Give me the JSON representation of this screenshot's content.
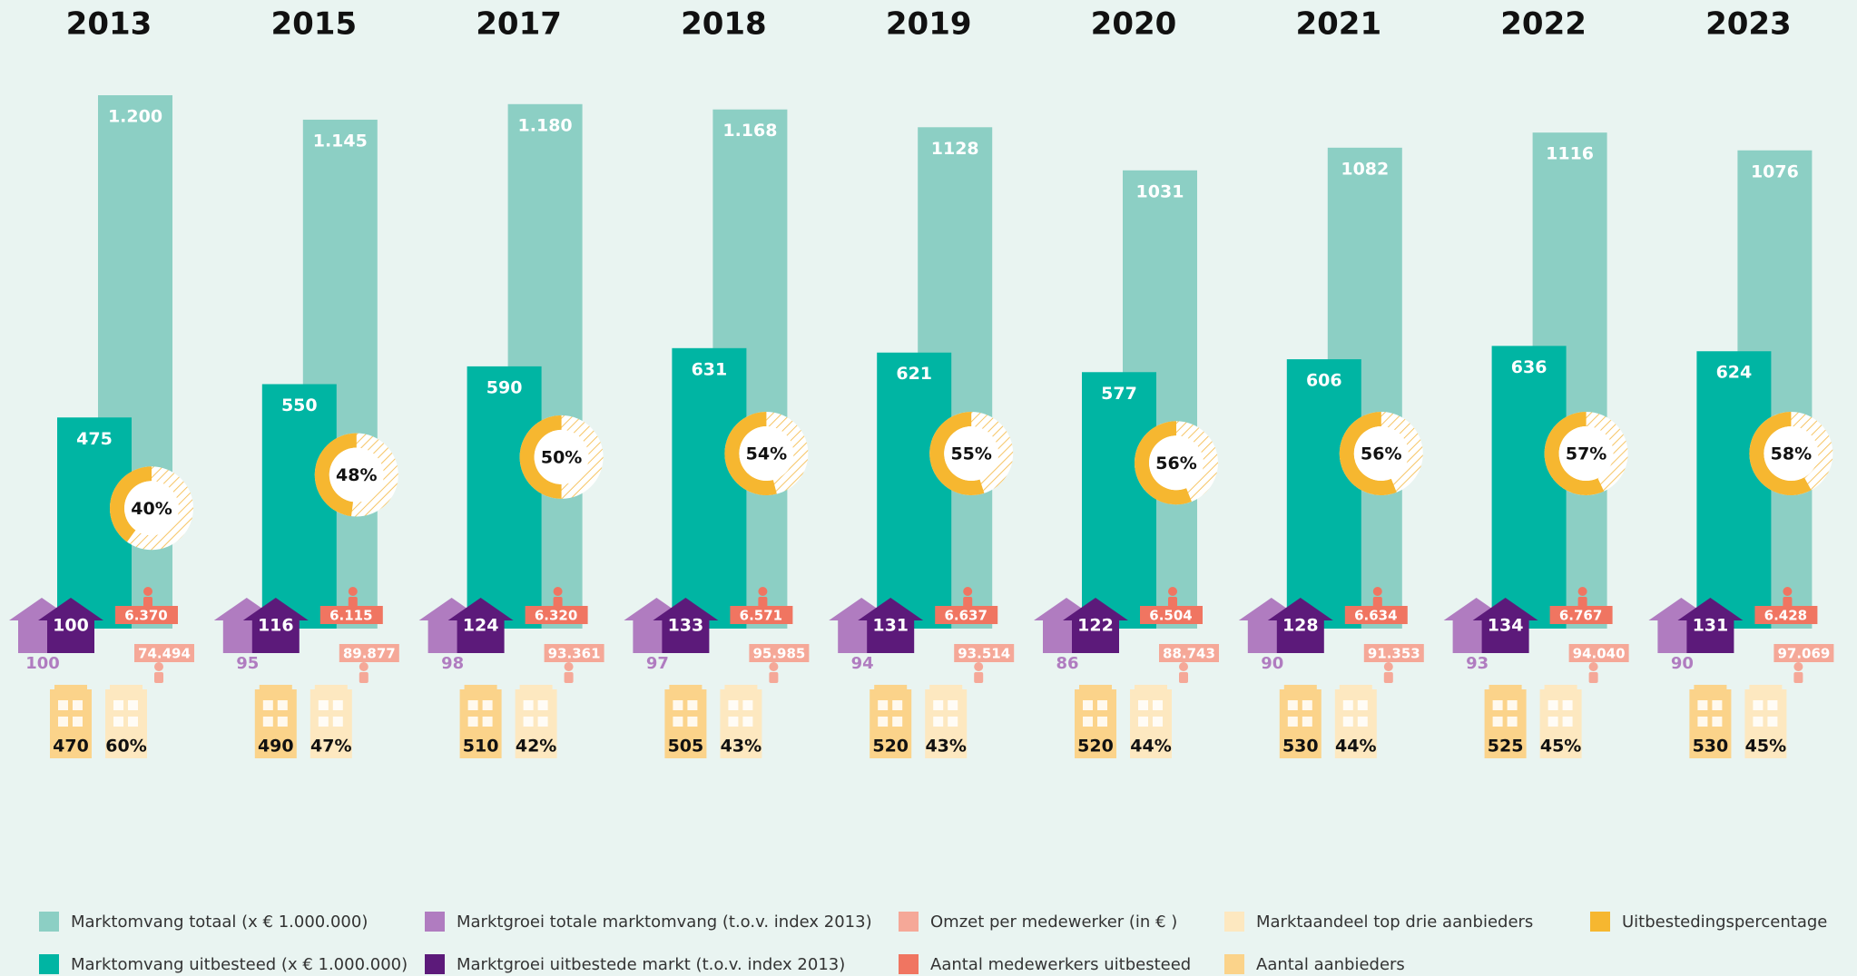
{
  "chart_data": {
    "type": "bar",
    "categories": [
      "2013",
      "2015",
      "2017",
      "2018",
      "2019",
      "2020",
      "2021",
      "2022",
      "2023"
    ],
    "series": [
      {
        "name": "Marktomvang totaal (x € 1.000.000)",
        "color": "#8ccfc4",
        "values": [
          1200,
          1145,
          1180,
          1168,
          1128,
          1031,
          1082,
          1116,
          1076
        ],
        "value_labels": [
          "1.200",
          "1.145",
          "1.180",
          "1.168",
          "1128",
          "1031",
          "1082",
          "1116",
          "1076"
        ]
      },
      {
        "name": "Marktomvang uitbesteed (x € 1.000.000)",
        "color": "#00b5a3",
        "values": [
          475,
          550,
          590,
          631,
          621,
          577,
          606,
          636,
          624
        ]
      },
      {
        "name": "Marktgroei totale marktomvang (t.o.v. index 2013)",
        "color": "#b07cc0",
        "values": [
          100,
          95,
          98,
          97,
          94,
          86,
          90,
          93,
          90
        ]
      },
      {
        "name": "Marktgroei uitbestede markt (t.o.v. index 2013)",
        "color": "#5c1a7a",
        "values": [
          100,
          116,
          124,
          133,
          131,
          122,
          128,
          134,
          131
        ]
      },
      {
        "name": "Omzet per medewerker (in € )",
        "color": "#f5a898",
        "values": [
          74494,
          89877,
          93361,
          95985,
          93514,
          88743,
          91353,
          94040,
          97069
        ],
        "value_labels": [
          "74.494",
          "89.877",
          "93.361",
          "95.985",
          "93.514",
          "88.743",
          "91.353",
          "94.040",
          "97.069"
        ]
      },
      {
        "name": "Aantal medewerkers uitbesteed",
        "color": "#f07561",
        "values": [
          6370,
          6115,
          6320,
          6571,
          6637,
          6504,
          6634,
          6767,
          6428
        ],
        "value_labels": [
          "6.370",
          "6.115",
          "6.320",
          "6.571",
          "6.637",
          "6.504",
          "6.634",
          "6.767",
          "6.428"
        ]
      },
      {
        "name": "Marktaandeel top drie aanbieders",
        "color": "#fde8c0",
        "values": [
          60,
          47,
          42,
          43,
          43,
          44,
          44,
          45,
          45
        ],
        "value_labels": [
          "60%",
          "47%",
          "42%",
          "43%",
          "43%",
          "44%",
          "44%",
          "45%",
          "45%"
        ]
      },
      {
        "name": "Aantal aanbieders",
        "color": "#fbd38a",
        "values": [
          470,
          490,
          510,
          505,
          520,
          520,
          530,
          525,
          530
        ]
      },
      {
        "name": "Uitbestedingspercentage",
        "color": "#f6b730",
        "values": [
          40,
          48,
          50,
          54,
          55,
          56,
          56,
          57,
          58
        ],
        "value_labels": [
          "40%",
          "48%",
          "50%",
          "54%",
          "55%",
          "56%",
          "56%",
          "57%",
          "58%"
        ]
      }
    ]
  }
}
